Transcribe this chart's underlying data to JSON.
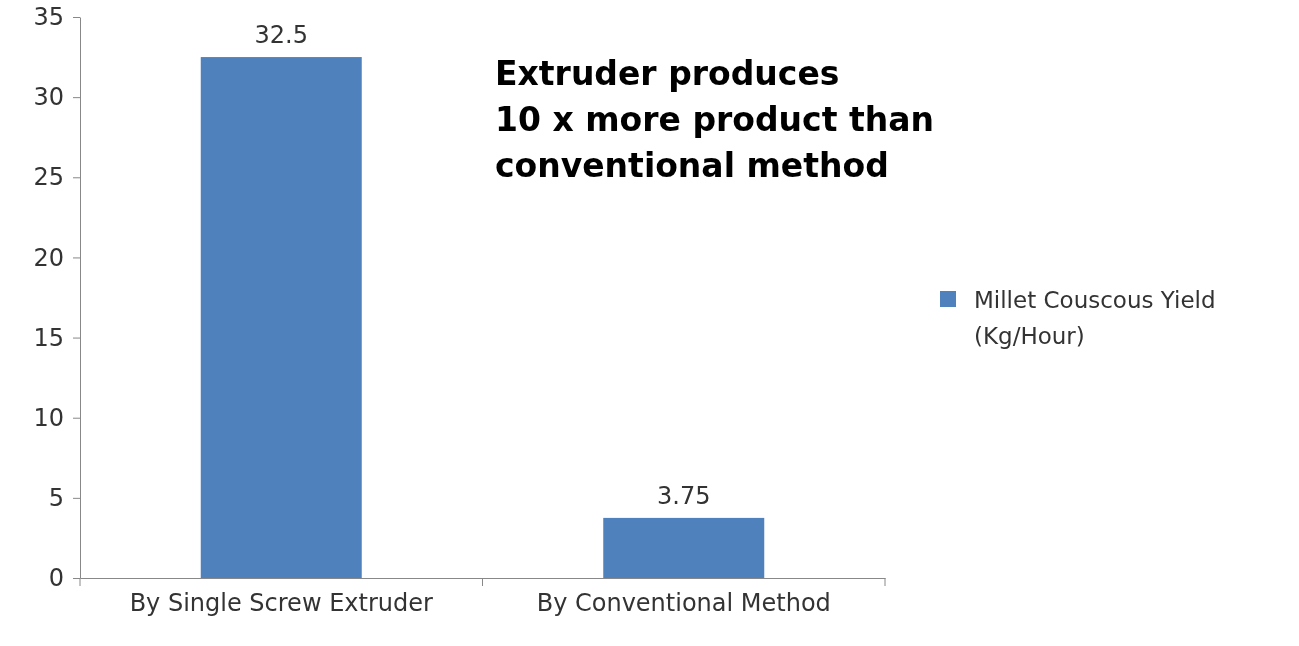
{
  "chart_data": {
    "type": "bar",
    "categories": [
      "By Single Screw Extruder",
      "By Conventional Method"
    ],
    "series": [
      {
        "name": "Millet Couscous Yield (Kg/Hour)",
        "color": "#4f81bd",
        "values": [
          32.5,
          3.75
        ]
      }
    ],
    "ylim": [
      0,
      35
    ],
    "yticks": [
      0,
      5,
      10,
      15,
      20,
      25,
      30,
      35
    ],
    "grid": false,
    "legend": "right",
    "data_labels": true,
    "annotations": [
      "Extruder produces\n10 x more product than\nconventional method"
    ]
  }
}
